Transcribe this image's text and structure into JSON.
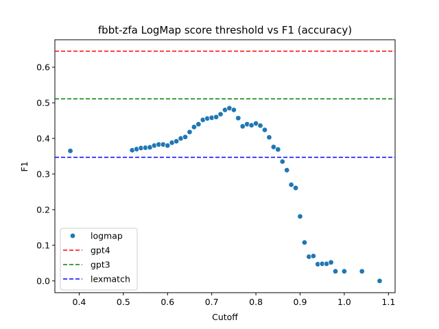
{
  "chart_data": {
    "type": "scatter",
    "title": "fbbt-zfa LogMap score threshold vs F1 (accuracy)",
    "xlabel": "Cutoff",
    "ylabel": "F1",
    "xlim": [
      0.345,
      1.115
    ],
    "ylim": [
      -0.033,
      0.677
    ],
    "xticks": [
      "0.4",
      "0.5",
      "0.6",
      "0.7",
      "0.8",
      "0.9",
      "1.0",
      "1.1"
    ],
    "xtick_values": [
      0.4,
      0.5,
      0.6,
      0.7,
      0.8,
      0.9,
      1.0,
      1.1
    ],
    "yticks": [
      "0.0",
      "0.1",
      "0.2",
      "0.3",
      "0.4",
      "0.5",
      "0.6"
    ],
    "ytick_values": [
      0.0,
      0.1,
      0.2,
      0.3,
      0.4,
      0.5,
      0.6
    ],
    "grid": false,
    "legend_position": "lower-left",
    "series": [
      {
        "name": "logmap",
        "kind": "scatter",
        "color": "#1f77b4",
        "points": [
          [
            0.38,
            0.365
          ],
          [
            0.52,
            0.367
          ],
          [
            0.53,
            0.37
          ],
          [
            0.54,
            0.373
          ],
          [
            0.55,
            0.374
          ],
          [
            0.56,
            0.375
          ],
          [
            0.57,
            0.38
          ],
          [
            0.58,
            0.383
          ],
          [
            0.59,
            0.383
          ],
          [
            0.6,
            0.38
          ],
          [
            0.61,
            0.388
          ],
          [
            0.62,
            0.392
          ],
          [
            0.63,
            0.4
          ],
          [
            0.64,
            0.404
          ],
          [
            0.65,
            0.418
          ],
          [
            0.66,
            0.432
          ],
          [
            0.67,
            0.44
          ],
          [
            0.68,
            0.452
          ],
          [
            0.69,
            0.456
          ],
          [
            0.7,
            0.458
          ],
          [
            0.71,
            0.46
          ],
          [
            0.72,
            0.468
          ],
          [
            0.73,
            0.48
          ],
          [
            0.74,
            0.485
          ],
          [
            0.75,
            0.48
          ],
          [
            0.76,
            0.457
          ],
          [
            0.77,
            0.434
          ],
          [
            0.78,
            0.44
          ],
          [
            0.79,
            0.437
          ],
          [
            0.8,
            0.442
          ],
          [
            0.81,
            0.436
          ],
          [
            0.82,
            0.424
          ],
          [
            0.83,
            0.403
          ],
          [
            0.84,
            0.376
          ],
          [
            0.85,
            0.369
          ],
          [
            0.86,
            0.335
          ],
          [
            0.87,
            0.311
          ],
          [
            0.88,
            0.27
          ],
          [
            0.89,
            0.261
          ],
          [
            0.9,
            0.181
          ],
          [
            0.91,
            0.108
          ],
          [
            0.92,
            0.068
          ],
          [
            0.93,
            0.07
          ],
          [
            0.94,
            0.047
          ],
          [
            0.95,
            0.048
          ],
          [
            0.96,
            0.048
          ],
          [
            0.97,
            0.052
          ],
          [
            0.98,
            0.027
          ],
          [
            1.0,
            0.027
          ],
          [
            1.04,
            0.027
          ],
          [
            1.08,
            0.0
          ]
        ]
      },
      {
        "name": "gpt4",
        "kind": "hline",
        "value": 0.645,
        "color": "#ff0000"
      },
      {
        "name": "gpt3",
        "kind": "hline",
        "value": 0.511,
        "color": "#008000"
      },
      {
        "name": "lexmatch",
        "kind": "hline",
        "value": 0.347,
        "color": "#0000ff"
      }
    ]
  }
}
